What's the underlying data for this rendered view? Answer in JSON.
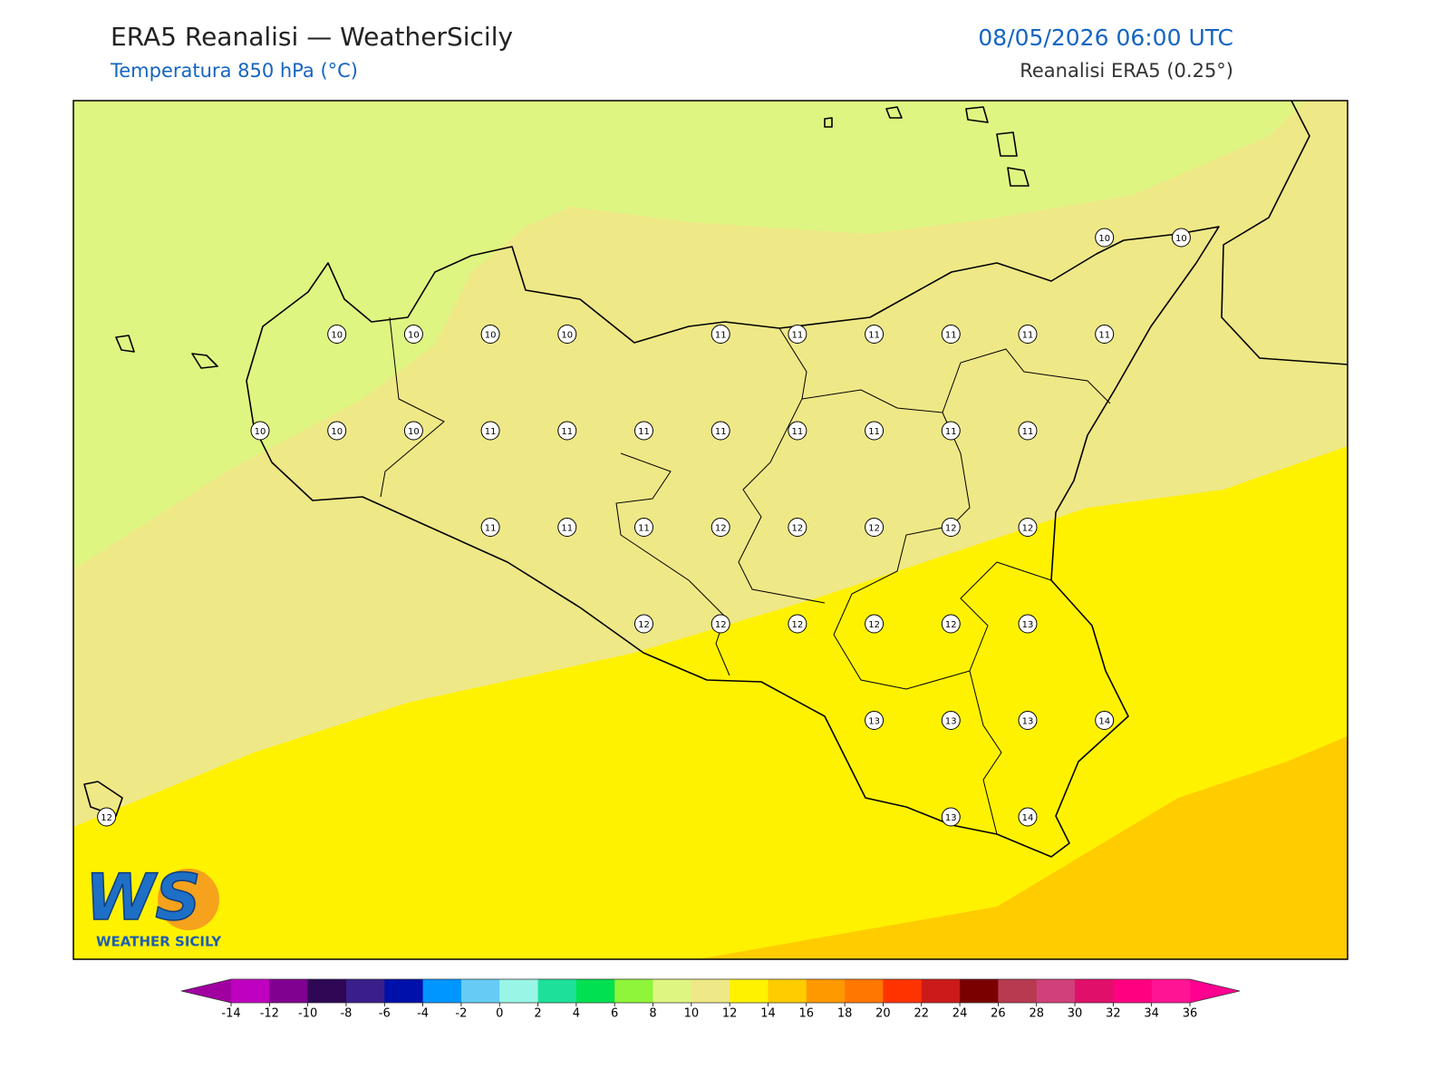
{
  "header": {
    "title": "ERA5 Reanalisi — WeatherSicily",
    "subtitle": "Temperatura 850 hPa (°C)",
    "datetime": "08/05/2026 06:00 UTC",
    "source": "Reanalisi ERA5 (0.25°)"
  },
  "map": {
    "grid": [
      [
        null,
        null,
        null,
        null,
        null,
        null,
        null,
        null,
        null,
        null,
        null,
        null,
        null,
        10,
        10
      ],
      [
        null,
        null,
        null,
        10,
        10,
        10,
        10,
        null,
        11,
        11,
        11,
        11,
        11,
        11,
        null
      ],
      [
        null,
        null,
        10,
        10,
        10,
        11,
        11,
        11,
        11,
        11,
        11,
        11,
        11,
        null,
        null
      ],
      [
        null,
        null,
        null,
        null,
        null,
        11,
        11,
        11,
        12,
        12,
        12,
        12,
        12,
        null,
        null
      ],
      [
        null,
        null,
        null,
        null,
        null,
        null,
        null,
        12,
        12,
        12,
        12,
        12,
        13,
        null,
        null
      ],
      [
        null,
        null,
        null,
        null,
        null,
        null,
        null,
        null,
        null,
        null,
        13,
        13,
        13,
        14,
        null
      ],
      [
        12,
        null,
        null,
        null,
        null,
        null,
        null,
        null,
        null,
        null,
        null,
        13,
        14,
        null,
        null
      ]
    ]
  },
  "logo": {
    "mark": "WS",
    "text": "WEATHER SICILY"
  },
  "colorbar": {
    "ticks": [
      -14,
      -12,
      -10,
      -8,
      -6,
      -4,
      -2,
      0,
      2,
      4,
      6,
      8,
      10,
      12,
      14,
      16,
      18,
      20,
      22,
      24,
      26,
      28,
      30,
      32,
      34,
      36
    ],
    "colors": [
      "#c000c0",
      "#800090",
      "#2e0854",
      "#3a1f8a",
      "#0010aa",
      "#0096ff",
      "#66ccf5",
      "#99f5e6",
      "#1de09a",
      "#00e050",
      "#8ef53a",
      "#dff582",
      "#efe887",
      "#fff200",
      "#ffcc00",
      "#ff9900",
      "#ff7700",
      "#ff3300",
      "#cc1a1a",
      "#7a0000",
      "#b83a50",
      "#d0407a",
      "#e0106a",
      "#ff0080",
      "#ff1493"
    ],
    "under_color": "#a000a0",
    "over_color": "#ff0090"
  }
}
